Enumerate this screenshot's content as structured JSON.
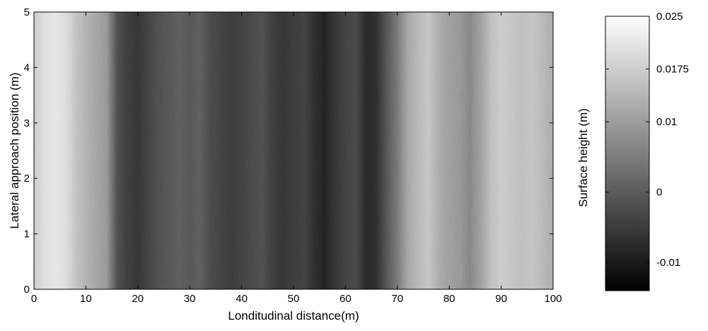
{
  "chart_data": {
    "type": "heatmap",
    "xlabel": "Londitudinal distance(m)",
    "ylabel": "Lateral approach position (m)",
    "xlim": [
      0,
      100
    ],
    "ylim": [
      0,
      5
    ],
    "x_ticks": [
      0,
      10,
      20,
      30,
      40,
      50,
      60,
      70,
      80,
      90,
      100
    ],
    "y_ticks": [
      0,
      1,
      2,
      3,
      4,
      5
    ],
    "colormap": "grayscale",
    "colorbar": {
      "label": "Surface height (m)",
      "range": [
        -0.014,
        0.025
      ],
      "ticks": [
        -0.01,
        0,
        0.01,
        0.0175,
        0.025
      ],
      "tick_labels": [
        "-0.01",
        "0",
        "0.01",
        "0.0175",
        "0.025"
      ]
    },
    "x": [
      0,
      2,
      4,
      6,
      8,
      10,
      12,
      14,
      16,
      18,
      20,
      22,
      24,
      26,
      28,
      30,
      32,
      34,
      36,
      38,
      40,
      42,
      44,
      46,
      48,
      50,
      52,
      54,
      56,
      58,
      60,
      62,
      64,
      66,
      68,
      70,
      72,
      74,
      76,
      78,
      80,
      82,
      84,
      86,
      88,
      90,
      92,
      94,
      96,
      98,
      100
    ],
    "height_profile": [
      0.017,
      0.02,
      0.021,
      0.02,
      0.016,
      0.013,
      0.011,
      0.009,
      -0.002,
      -0.005,
      -0.006,
      -0.004,
      -0.002,
      -0.001,
      0.0,
      -0.001,
      0.0,
      -0.003,
      -0.004,
      -0.005,
      -0.004,
      -0.003,
      -0.002,
      -0.005,
      -0.006,
      -0.005,
      -0.004,
      -0.007,
      -0.009,
      -0.006,
      -0.004,
      -0.003,
      -0.008,
      -0.007,
      -0.001,
      0.004,
      0.011,
      0.014,
      0.016,
      0.012,
      0.01,
      0.009,
      0.006,
      0.01,
      0.015,
      0.017,
      0.016,
      0.015,
      0.016,
      0.014,
      0.012
    ]
  }
}
